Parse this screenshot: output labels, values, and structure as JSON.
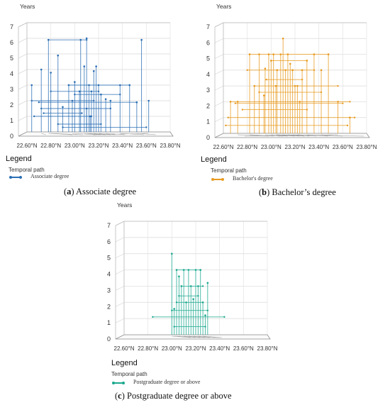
{
  "chart_data": [
    {
      "type": "line",
      "panel_id": "a",
      "caption_letter": "a",
      "caption_text": "Associate degree",
      "ylabel": "Years",
      "yticks": [
        "0",
        "1",
        "2",
        "3",
        "4",
        "5",
        "6",
        "7"
      ],
      "ylim": [
        0,
        7
      ],
      "xticks": [
        "22.60°N",
        "22.80°N",
        "23.00°N",
        "23.20°N",
        "23.40°N",
        "23.60°N",
        "23.80°N"
      ],
      "xlim": [
        22.6,
        23.8
      ],
      "legend_title": "Legend",
      "legend_subtitle": "Temporal path",
      "legend_entry": "Associate degree",
      "color": "#2b6fb5",
      "grid": true,
      "verticals": [
        {
          "x": 22.78,
          "y": 5.9
        },
        {
          "x": 22.86,
          "y": 4.9
        },
        {
          "x": 22.72,
          "y": 4.0
        },
        {
          "x": 22.64,
          "y": 3.0
        },
        {
          "x": 22.8,
          "y": 3.8
        },
        {
          "x": 22.95,
          "y": 3.0
        },
        {
          "x": 23.0,
          "y": 3.2
        },
        {
          "x": 23.05,
          "y": 5.9
        },
        {
          "x": 23.08,
          "y": 4.2
        },
        {
          "x": 23.1,
          "y": 6.0
        },
        {
          "x": 23.12,
          "y": 3.0
        },
        {
          "x": 23.14,
          "y": 2.6
        },
        {
          "x": 23.16,
          "y": 3.9
        },
        {
          "x": 23.18,
          "y": 4.2
        },
        {
          "x": 23.2,
          "y": 3.0
        },
        {
          "x": 23.22,
          "y": 2.4
        },
        {
          "x": 23.26,
          "y": 2.1
        },
        {
          "x": 23.3,
          "y": 2.0
        },
        {
          "x": 23.38,
          "y": 3.0
        },
        {
          "x": 23.46,
          "y": 3.0
        },
        {
          "x": 23.52,
          "y": 1.9
        },
        {
          "x": 23.56,
          "y": 5.9
        },
        {
          "x": 23.62,
          "y": 2.0
        },
        {
          "x": 23.04,
          "y": 2.6
        },
        {
          "x": 22.98,
          "y": 2.0
        },
        {
          "x": 22.9,
          "y": 1.6
        },
        {
          "x": 23.1,
          "y": 1.5
        },
        {
          "x": 23.13,
          "y": 1.0
        }
      ],
      "horizontals": [
        {
          "x1": 22.78,
          "x2": 23.1,
          "y": 5.9
        },
        {
          "x1": 22.95,
          "x2": 23.46,
          "y": 3.0
        },
        {
          "x1": 22.64,
          "x2": 23.16,
          "y": 2.0
        },
        {
          "x1": 22.7,
          "x2": 23.52,
          "y": 1.9
        },
        {
          "x1": 22.8,
          "x2": 23.2,
          "y": 2.6
        },
        {
          "x1": 23.0,
          "x2": 23.38,
          "y": 2.4
        },
        {
          "x1": 22.66,
          "x2": 23.14,
          "y": 1.0
        },
        {
          "x1": 22.72,
          "x2": 23.3,
          "y": 1.5
        },
        {
          "x1": 22.86,
          "x2": 23.22,
          "y": 0.5
        },
        {
          "x1": 22.9,
          "x2": 23.6,
          "y": 0.3
        },
        {
          "x1": 22.74,
          "x2": 23.06,
          "y": 1.2
        }
      ]
    },
    {
      "type": "line",
      "panel_id": "b",
      "caption_letter": "b",
      "caption_text": "Bachelor’s degree",
      "ylabel": "Years",
      "yticks": [
        "0",
        "1",
        "2",
        "3",
        "4",
        "5",
        "6",
        "7"
      ],
      "ylim": [
        0,
        7
      ],
      "xticks": [
        "22.60°N",
        "22.80°N",
        "23.00°N",
        "23.20°N",
        "23.40°N",
        "23.60°N",
        "23.80°N"
      ],
      "xlim": [
        22.6,
        23.8
      ],
      "legend_title": "Legend",
      "legend_subtitle": "Temporal path",
      "legend_entry": "Bachelor's degree",
      "color": "#e89a1f",
      "grid": true,
      "verticals": [
        {
          "x": 22.82,
          "y": 5.0
        },
        {
          "x": 22.9,
          "y": 5.0
        },
        {
          "x": 22.95,
          "y": 4.1
        },
        {
          "x": 22.98,
          "y": 5.0
        },
        {
          "x": 23.0,
          "y": 4.6
        },
        {
          "x": 23.02,
          "y": 5.0
        },
        {
          "x": 23.05,
          "y": 4.0
        },
        {
          "x": 23.08,
          "y": 5.0
        },
        {
          "x": 23.1,
          "y": 6.0
        },
        {
          "x": 23.12,
          "y": 4.0
        },
        {
          "x": 23.14,
          "y": 5.0
        },
        {
          "x": 23.16,
          "y": 4.4
        },
        {
          "x": 23.18,
          "y": 4.0
        },
        {
          "x": 23.2,
          "y": 3.0
        },
        {
          "x": 23.22,
          "y": 3.0
        },
        {
          "x": 23.26,
          "y": 4.0
        },
        {
          "x": 23.3,
          "y": 4.6
        },
        {
          "x": 23.36,
          "y": 5.0
        },
        {
          "x": 23.42,
          "y": 4.0
        },
        {
          "x": 23.48,
          "y": 5.0
        },
        {
          "x": 23.56,
          "y": 2.0
        },
        {
          "x": 22.66,
          "y": 2.0
        },
        {
          "x": 22.72,
          "y": 2.0
        },
        {
          "x": 22.86,
          "y": 3.0
        },
        {
          "x": 23.04,
          "y": 3.0
        },
        {
          "x": 23.66,
          "y": 1.0
        },
        {
          "x": 23.24,
          "y": 2.0
        },
        {
          "x": 22.94,
          "y": 2.4
        }
      ],
      "horizontals": [
        {
          "x1": 22.82,
          "x2": 23.48,
          "y": 5.0
        },
        {
          "x1": 22.86,
          "x2": 23.56,
          "y": 3.0
        },
        {
          "x1": 22.66,
          "x2": 23.66,
          "y": 2.0
        },
        {
          "x1": 22.7,
          "x2": 23.6,
          "y": 1.9
        },
        {
          "x1": 22.8,
          "x2": 23.36,
          "y": 4.0
        },
        {
          "x1": 22.64,
          "x2": 23.7,
          "y": 1.0
        },
        {
          "x1": 22.9,
          "x2": 23.42,
          "y": 2.6
        },
        {
          "x1": 22.76,
          "x2": 23.3,
          "y": 1.5
        },
        {
          "x1": 22.96,
          "x2": 23.26,
          "y": 3.4
        },
        {
          "x1": 22.62,
          "x2": 23.64,
          "y": 0.5
        },
        {
          "x1": 23.0,
          "x2": 23.3,
          "y": 4.6
        }
      ]
    },
    {
      "type": "line",
      "panel_id": "c",
      "caption_letter": "c",
      "caption_text": "Postgraduate degree or above",
      "ylabel": "Years",
      "yticks": [
        "0",
        "1",
        "2",
        "3",
        "4",
        "5",
        "6",
        "7"
      ],
      "ylim": [
        0,
        7
      ],
      "xticks": [
        "22.60°N",
        "22.80°N",
        "23.00°N",
        "23.20°N",
        "23.40°N",
        "23.60°N",
        "23.80°N"
      ],
      "xlim": [
        22.6,
        23.8
      ],
      "legend_title": "Legend",
      "legend_subtitle": "Temporal path",
      "legend_entry": "Postgraduate degree or above",
      "color": "#1aa88e",
      "grid": true,
      "verticals": [
        {
          "x": 23.0,
          "y": 5.0
        },
        {
          "x": 23.04,
          "y": 4.0
        },
        {
          "x": 23.06,
          "y": 3.6
        },
        {
          "x": 23.08,
          "y": 3.0
        },
        {
          "x": 23.1,
          "y": 4.0
        },
        {
          "x": 23.12,
          "y": 2.0
        },
        {
          "x": 23.14,
          "y": 4.0
        },
        {
          "x": 23.16,
          "y": 3.0
        },
        {
          "x": 23.18,
          "y": 2.2
        },
        {
          "x": 23.2,
          "y": 4.0
        },
        {
          "x": 23.22,
          "y": 3.0
        },
        {
          "x": 23.24,
          "y": 4.0
        },
        {
          "x": 23.26,
          "y": 2.0
        },
        {
          "x": 23.3,
          "y": 3.2
        },
        {
          "x": 23.02,
          "y": 1.6
        },
        {
          "x": 23.28,
          "y": 1.2
        }
      ],
      "horizontals": [
        {
          "x1": 23.04,
          "x2": 23.24,
          "y": 4.0
        },
        {
          "x1": 23.08,
          "x2": 23.26,
          "y": 3.0
        },
        {
          "x1": 23.04,
          "x2": 23.26,
          "y": 2.0
        },
        {
          "x1": 22.84,
          "x2": 23.44,
          "y": 1.1
        },
        {
          "x1": 23.0,
          "x2": 23.3,
          "y": 1.5
        },
        {
          "x1": 23.02,
          "x2": 23.28,
          "y": 0.5
        },
        {
          "x1": 23.06,
          "x2": 23.22,
          "y": 2.4
        }
      ]
    }
  ]
}
